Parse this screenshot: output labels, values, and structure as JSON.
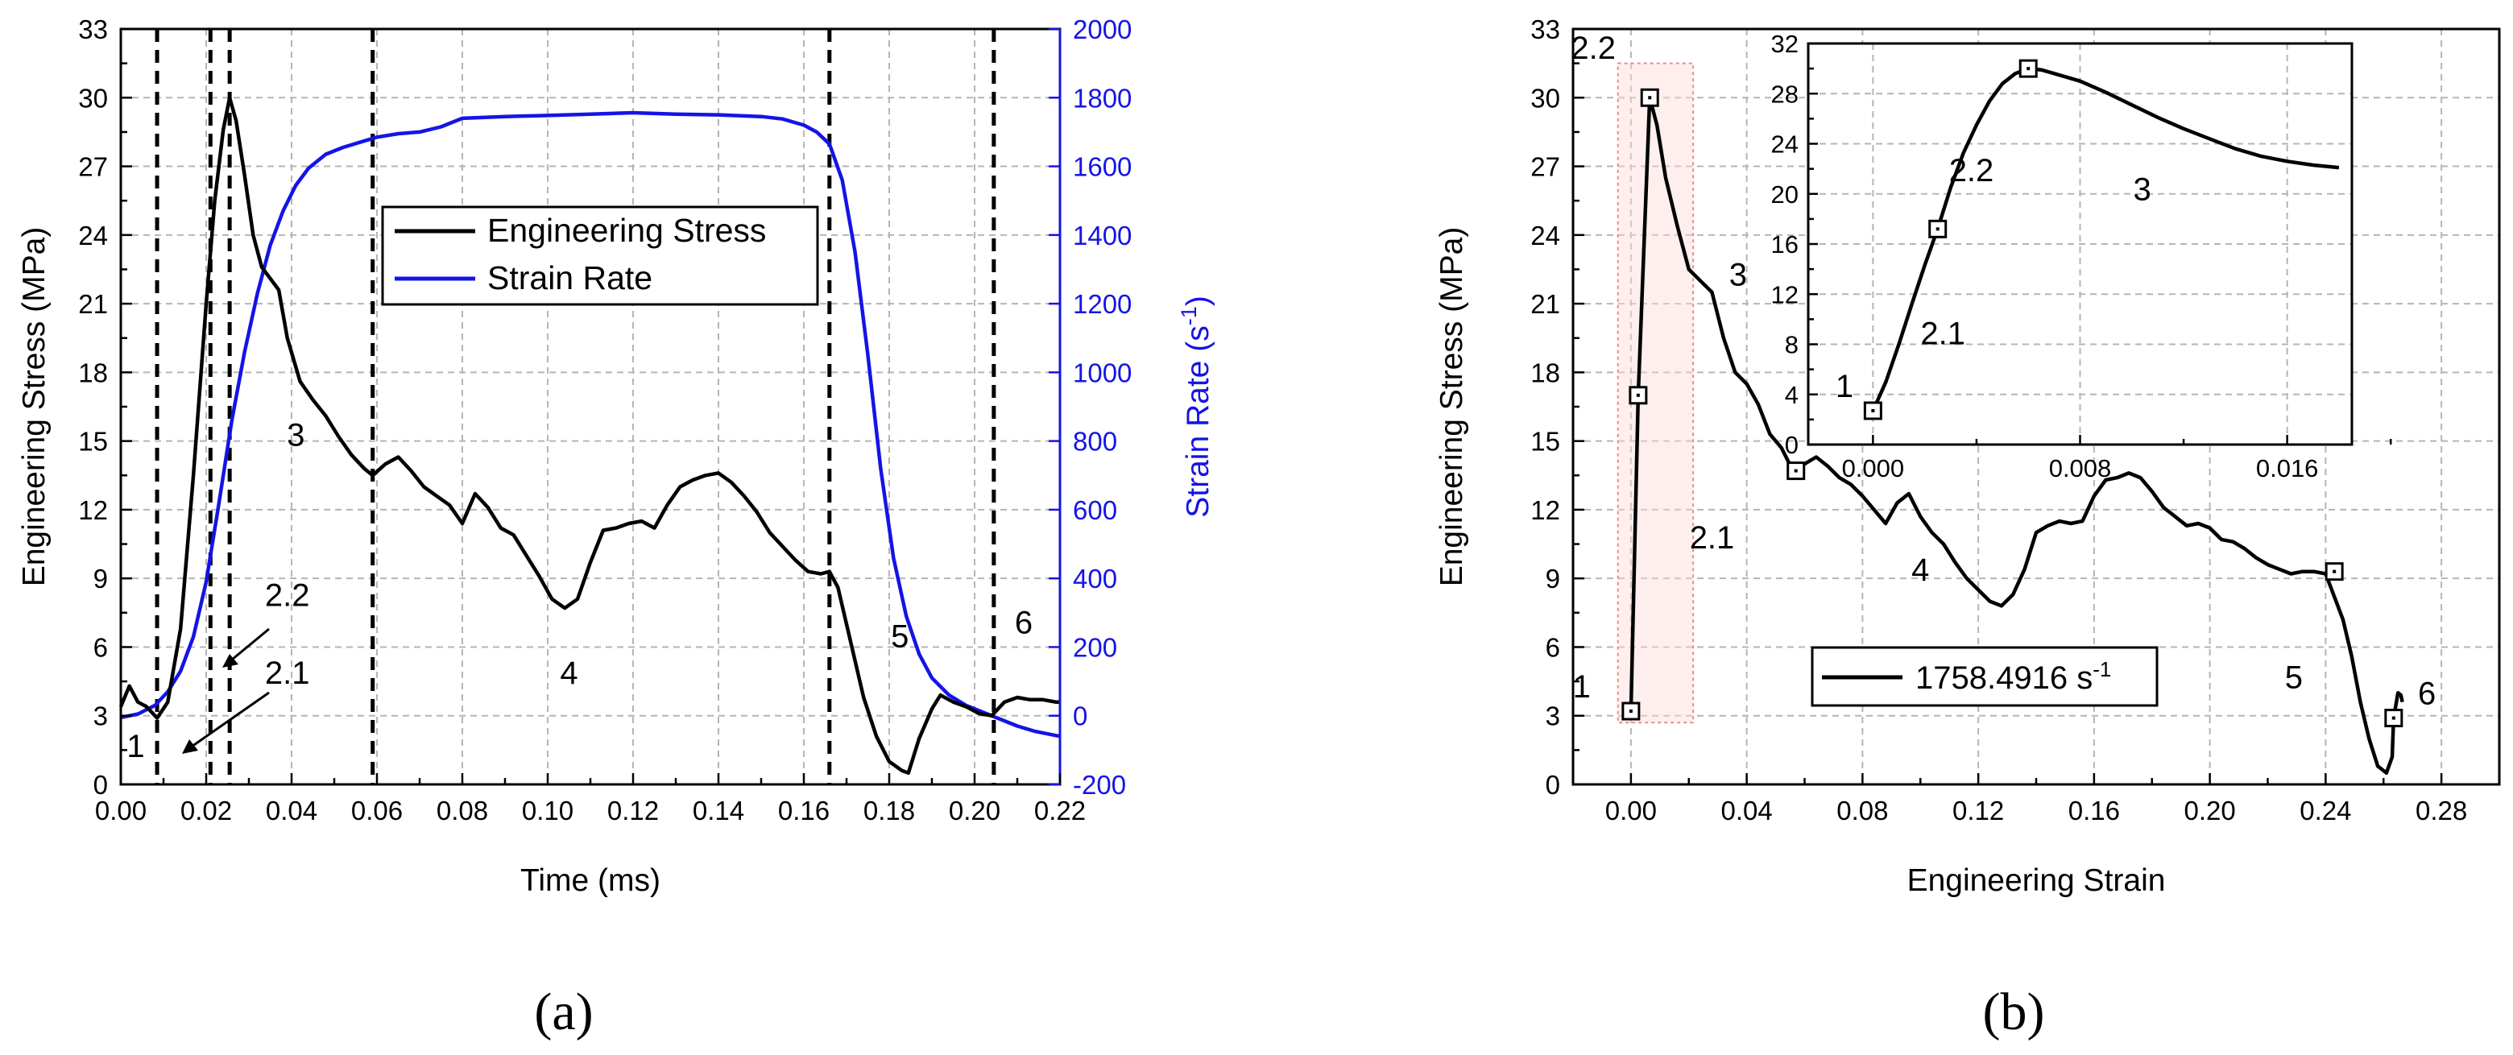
{
  "chart_data": [
    {
      "type": "line",
      "panel_label": "(a)",
      "xlabel": "Time (ms)",
      "ylabel": "Engineering Stress (MPa)",
      "y2label": "Strain Rate (s",
      "y2label_exp": "-1",
      "y2label_close": ")",
      "xlim": [
        0.0,
        0.22
      ],
      "ylim": [
        0,
        33
      ],
      "y2lim": [
        -200,
        2000
      ],
      "xticks": [
        "0.00",
        "0.02",
        "0.04",
        "0.06",
        "0.08",
        "0.10",
        "0.12",
        "0.14",
        "0.16",
        "0.18",
        "0.20",
        "0.22"
      ],
      "yticks": [
        "0",
        "3",
        "6",
        "9",
        "12",
        "15",
        "18",
        "21",
        "24",
        "27",
        "30",
        "33"
      ],
      "y2ticks": [
        "-200",
        "0",
        "200",
        "400",
        "600",
        "800",
        "1000",
        "1200",
        "1400",
        "1600",
        "1800",
        "2000"
      ],
      "legend": [
        "Engineering Stress",
        "Strain Rate"
      ],
      "colors": {
        "stress": "#000000",
        "rate": "#1414e6"
      },
      "vlines": [
        0.0085,
        0.021,
        0.0255,
        0.059,
        0.166,
        0.2045
      ],
      "regions": [
        {
          "label": "1",
          "x": 0.0035,
          "y": 1.2
        },
        {
          "label": "2.2",
          "x": 0.039,
          "y": 7.8
        },
        {
          "label": "2.1",
          "x": 0.039,
          "y": 4.4
        },
        {
          "label": "3",
          "x": 0.041,
          "y": 14.8
        },
        {
          "label": "4",
          "x": 0.105,
          "y": 4.4
        },
        {
          "label": "5",
          "x": 0.1825,
          "y": 6.0
        },
        {
          "label": "6",
          "x": 0.2115,
          "y": 6.6
        }
      ],
      "series": [
        {
          "name": "Engineering Stress",
          "axis": "left",
          "x": [
            0.0,
            0.002,
            0.004,
            0.006,
            0.0085,
            0.011,
            0.014,
            0.017,
            0.02,
            0.022,
            0.024,
            0.0255,
            0.027,
            0.029,
            0.031,
            0.033,
            0.035,
            0.037,
            0.039,
            0.042,
            0.045,
            0.048,
            0.051,
            0.054,
            0.057,
            0.059,
            0.062,
            0.065,
            0.068,
            0.071,
            0.074,
            0.077,
            0.08,
            0.083,
            0.086,
            0.089,
            0.092,
            0.095,
            0.098,
            0.101,
            0.104,
            0.107,
            0.11,
            0.113,
            0.116,
            0.119,
            0.122,
            0.125,
            0.128,
            0.131,
            0.134,
            0.137,
            0.14,
            0.143,
            0.146,
            0.149,
            0.152,
            0.155,
            0.158,
            0.161,
            0.164,
            0.166,
            0.168,
            0.171,
            0.174,
            0.177,
            0.18,
            0.183,
            0.1845,
            0.187,
            0.19,
            0.192,
            0.195,
            0.198,
            0.201,
            0.204,
            0.207,
            0.21,
            0.213,
            0.216,
            0.219,
            0.22
          ],
          "y": [
            3.4,
            4.3,
            3.6,
            3.4,
            2.9,
            3.6,
            6.8,
            13.5,
            21.0,
            25.5,
            28.6,
            30.0,
            29.0,
            26.6,
            24.0,
            22.6,
            22.1,
            21.6,
            19.5,
            17.6,
            16.8,
            16.1,
            15.2,
            14.4,
            13.8,
            13.5,
            14.0,
            14.3,
            13.7,
            13.0,
            12.6,
            12.2,
            11.4,
            12.7,
            12.1,
            11.2,
            10.9,
            10.0,
            9.1,
            8.1,
            7.7,
            8.1,
            9.7,
            11.1,
            11.2,
            11.4,
            11.5,
            11.2,
            12.2,
            13.0,
            13.3,
            13.5,
            13.6,
            13.2,
            12.6,
            11.9,
            11.0,
            10.4,
            9.8,
            9.3,
            9.2,
            9.3,
            8.6,
            6.2,
            3.8,
            2.1,
            1.0,
            0.6,
            0.5,
            2.0,
            3.3,
            3.9,
            3.6,
            3.4,
            3.1,
            3.0,
            3.6,
            3.8,
            3.7,
            3.7,
            3.6,
            3.6
          ]
        },
        {
          "name": "Strain Rate",
          "axis": "right",
          "x": [
            0.0,
            0.004,
            0.008,
            0.011,
            0.014,
            0.017,
            0.02,
            0.023,
            0.026,
            0.029,
            0.032,
            0.035,
            0.038,
            0.041,
            0.044,
            0.048,
            0.052,
            0.056,
            0.06,
            0.065,
            0.07,
            0.075,
            0.08,
            0.09,
            0.1,
            0.11,
            0.12,
            0.13,
            0.14,
            0.15,
            0.155,
            0.16,
            0.163,
            0.166,
            0.169,
            0.172,
            0.175,
            0.178,
            0.181,
            0.184,
            0.187,
            0.19,
            0.194,
            0.198,
            0.202,
            0.206,
            0.21,
            0.214,
            0.218,
            0.22
          ],
          "y": [
            -5,
            5,
            30,
            70,
            130,
            230,
            390,
            620,
            860,
            1060,
            1230,
            1370,
            1470,
            1545,
            1595,
            1635,
            1655,
            1670,
            1685,
            1695,
            1700,
            1715,
            1740,
            1745,
            1748,
            1752,
            1756,
            1752,
            1750,
            1745,
            1738,
            1720,
            1700,
            1665,
            1560,
            1350,
            1050,
            720,
            460,
            290,
            180,
            110,
            60,
            30,
            10,
            -10,
            -30,
            -45,
            -55,
            -60
          ]
        }
      ]
    },
    {
      "type": "line",
      "panel_label": "(b)",
      "xlabel": "Engineering Strain",
      "ylabel": "Engineering Stress (MPa)",
      "xlim": [
        -0.02,
        0.3
      ],
      "ylim": [
        0,
        33
      ],
      "xticks": [
        "0.00",
        "0.04",
        "0.08",
        "0.12",
        "0.16",
        "0.20",
        "0.24",
        "0.28"
      ],
      "yticks": [
        "0",
        "3",
        "6",
        "9",
        "12",
        "15",
        "18",
        "21",
        "24",
        "27",
        "30",
        "33"
      ],
      "legend": "1758.4916 s",
      "legend_exp": "-1",
      "colors": {
        "line": "#000000",
        "highlight": "#ffdada"
      },
      "regions": [
        {
          "label": "2.2",
          "x": -0.013,
          "y": 31.7
        },
        {
          "label": "3",
          "x": 0.037,
          "y": 21.8
        },
        {
          "label": "2.1",
          "x": 0.028,
          "y": 10.3
        },
        {
          "label": "4",
          "x": 0.1,
          "y": 8.9
        },
        {
          "label": "1",
          "x": -0.017,
          "y": 3.8
        },
        {
          "label": "5",
          "x": 0.229,
          "y": 4.2
        },
        {
          "label": "6",
          "x": 0.275,
          "y": 3.5
        }
      ],
      "series": [
        {
          "name": "1758.4916 s-1",
          "x": [
            0.0,
            0.0025,
            0.0065,
            0.009,
            0.012,
            0.016,
            0.02,
            0.024,
            0.028,
            0.032,
            0.036,
            0.04,
            0.044,
            0.048,
            0.052,
            0.056,
            0.06,
            0.064,
            0.068,
            0.072,
            0.076,
            0.08,
            0.084,
            0.088,
            0.092,
            0.096,
            0.1,
            0.104,
            0.108,
            0.112,
            0.116,
            0.12,
            0.124,
            0.128,
            0.132,
            0.136,
            0.14,
            0.144,
            0.148,
            0.152,
            0.156,
            0.16,
            0.164,
            0.168,
            0.172,
            0.176,
            0.18,
            0.184,
            0.188,
            0.192,
            0.196,
            0.2,
            0.204,
            0.208,
            0.212,
            0.216,
            0.22,
            0.224,
            0.228,
            0.232,
            0.236,
            0.24,
            0.243,
            0.246,
            0.249,
            0.252,
            0.255,
            0.258,
            0.261,
            0.263,
            0.2635,
            0.265,
            0.266,
            0.2665
          ],
          "y": [
            3.2,
            17.0,
            30.0,
            28.8,
            26.5,
            24.4,
            22.5,
            22.0,
            21.5,
            19.5,
            18.0,
            17.5,
            16.6,
            15.3,
            14.7,
            13.7,
            14.0,
            14.3,
            13.9,
            13.4,
            13.1,
            12.6,
            12.0,
            11.4,
            12.3,
            12.7,
            11.7,
            11.0,
            10.5,
            9.7,
            9.0,
            8.5,
            8.0,
            7.8,
            8.3,
            9.4,
            11.0,
            11.3,
            11.5,
            11.4,
            11.5,
            12.6,
            13.3,
            13.4,
            13.6,
            13.4,
            12.8,
            12.1,
            11.7,
            11.3,
            11.4,
            11.2,
            10.7,
            10.6,
            10.3,
            9.9,
            9.6,
            9.4,
            9.2,
            9.3,
            9.3,
            9.2,
            8.2,
            7.2,
            5.6,
            3.6,
            2.0,
            0.8,
            0.5,
            1.2,
            2.9,
            4.0,
            3.9,
            3.6
          ]
        }
      ],
      "markers": [
        [
          0.0,
          3.2
        ],
        [
          0.0025,
          17.0
        ],
        [
          0.0065,
          30.0
        ],
        [
          0.057,
          13.7
        ],
        [
          0.243,
          9.3
        ],
        [
          0.2635,
          2.9
        ]
      ],
      "inset": {
        "xlim": [
          -0.0025,
          0.0185
        ],
        "ylim": [
          0,
          32
        ],
        "xticks": [
          "0.000",
          "0.008",
          "0.016"
        ],
        "yticks": [
          "0",
          "4",
          "8",
          "12",
          "16",
          "20",
          "24",
          "28",
          "32"
        ],
        "regions": [
          {
            "label": "1",
            "x": -0.0011,
            "y": 3.8
          },
          {
            "label": "2.1",
            "x": 0.0027,
            "y": 8.0
          },
          {
            "label": "2.2",
            "x": 0.0038,
            "y": 21.0
          },
          {
            "label": "3",
            "x": 0.0104,
            "y": 19.5
          }
        ],
        "x": [
          0.0,
          0.0005,
          0.001,
          0.0015,
          0.002,
          0.0025,
          0.003,
          0.0035,
          0.004,
          0.0045,
          0.005,
          0.0055,
          0.006,
          0.0065,
          0.007,
          0.008,
          0.009,
          0.01,
          0.011,
          0.012,
          0.013,
          0.014,
          0.015,
          0.016,
          0.017,
          0.018
        ],
        "y": [
          2.7,
          5.0,
          8.0,
          11.2,
          14.3,
          17.2,
          20.5,
          23.3,
          25.5,
          27.4,
          28.8,
          29.6,
          30.0,
          29.9,
          29.6,
          29.0,
          28.1,
          27.1,
          26.1,
          25.2,
          24.4,
          23.6,
          23.0,
          22.6,
          22.3,
          22.1
        ],
        "markers": [
          [
            0.0,
            2.7
          ],
          [
            0.0025,
            17.2
          ],
          [
            0.006,
            30.0
          ]
        ]
      }
    }
  ]
}
